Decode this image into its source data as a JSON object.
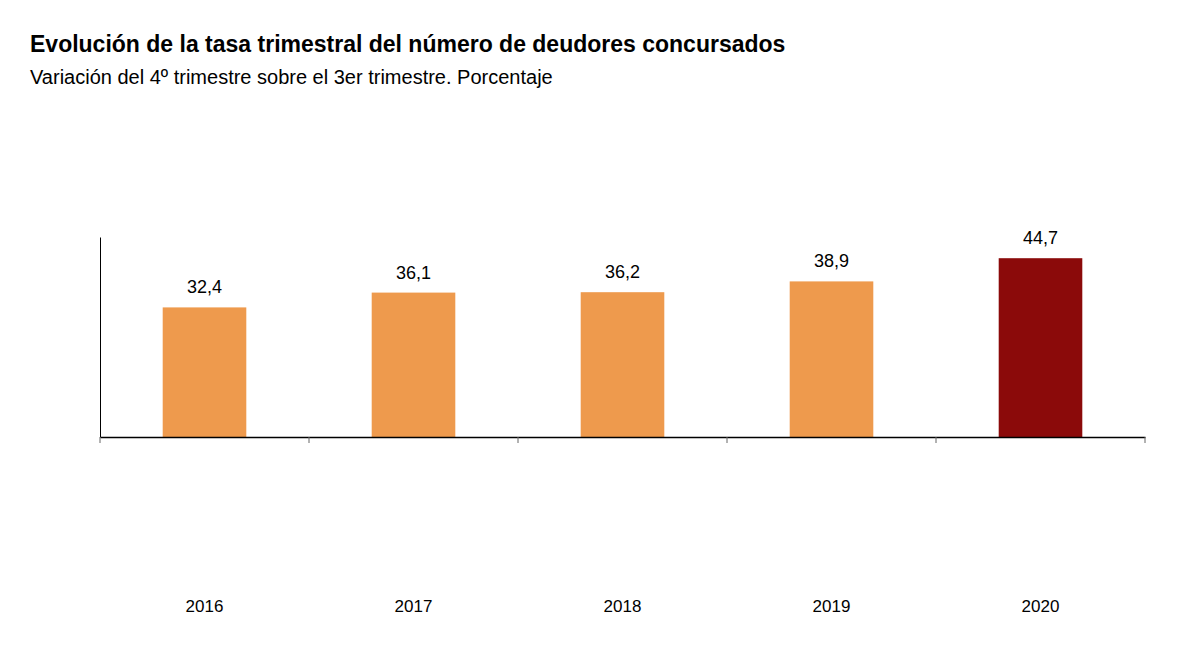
{
  "chart_data": {
    "type": "bar",
    "title": "Evolución de la tasa trimestral del número de deudores concursados",
    "subtitle": "Variación del 4º trimestre sobre el 3er trimestre. Porcentaje",
    "categories": [
      "2016",
      "2017",
      "2018",
      "2019",
      "2020"
    ],
    "values": [
      32.4,
      36.1,
      36.2,
      38.9,
      44.7
    ],
    "value_labels": [
      "32,4",
      "36,1",
      "36,2",
      "38,9",
      "44,7"
    ],
    "colors": [
      "#ee9a4d",
      "#ee9a4d",
      "#ee9a4d",
      "#ee9a4d",
      "#8b0a0a"
    ],
    "ylim": [
      0,
      50
    ],
    "data_labels": true,
    "tick_labels": "x",
    "grid": false
  }
}
